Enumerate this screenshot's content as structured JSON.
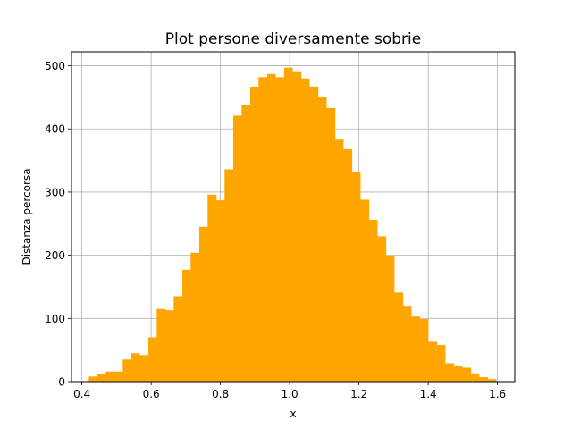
{
  "chart_data": {
    "type": "bar",
    "title": "Plot persone diversamente sobrie",
    "xlabel": "x",
    "ylabel": "Distanza percorsa",
    "xlim": [
      0.37,
      1.65
    ],
    "ylim": [
      0,
      522
    ],
    "grid": true,
    "bar_color": "#ffa500",
    "xticks": [
      0.4,
      0.6,
      0.8,
      1.0,
      1.2,
      1.4,
      1.6
    ],
    "xtick_labels": [
      "0.4",
      "0.6",
      "0.8",
      "1.0",
      "1.2",
      "1.4",
      "1.6"
    ],
    "yticks": [
      0,
      100,
      200,
      300,
      400,
      500
    ],
    "ytick_labels": [
      "0",
      "100",
      "200",
      "300",
      "400",
      "500"
    ],
    "bin_edges": [
      0.42,
      0.445,
      0.469,
      0.494,
      0.518,
      0.543,
      0.567,
      0.592,
      0.616,
      0.641,
      0.665,
      0.69,
      0.714,
      0.739,
      0.763,
      0.788,
      0.812,
      0.837,
      0.861,
      0.886,
      0.91,
      0.935,
      0.959,
      0.984,
      1.008,
      1.033,
      1.057,
      1.082,
      1.106,
      1.131,
      1.155,
      1.18,
      1.204,
      1.229,
      1.253,
      1.278,
      1.302,
      1.327,
      1.351,
      1.376,
      1.4,
      1.425,
      1.449,
      1.474,
      1.498,
      1.523,
      1.547,
      1.572,
      1.596
    ],
    "values": [
      8,
      12,
      16,
      16,
      35,
      45,
      42,
      70,
      115,
      113,
      135,
      177,
      204,
      245,
      296,
      287,
      336,
      421,
      438,
      467,
      482,
      487,
      482,
      497,
      490,
      480,
      467,
      450,
      433,
      383,
      368,
      332,
      288,
      256,
      230,
      200,
      141,
      120,
      103,
      99,
      63,
      58,
      29,
      25,
      22,
      13,
      7,
      4
    ]
  }
}
